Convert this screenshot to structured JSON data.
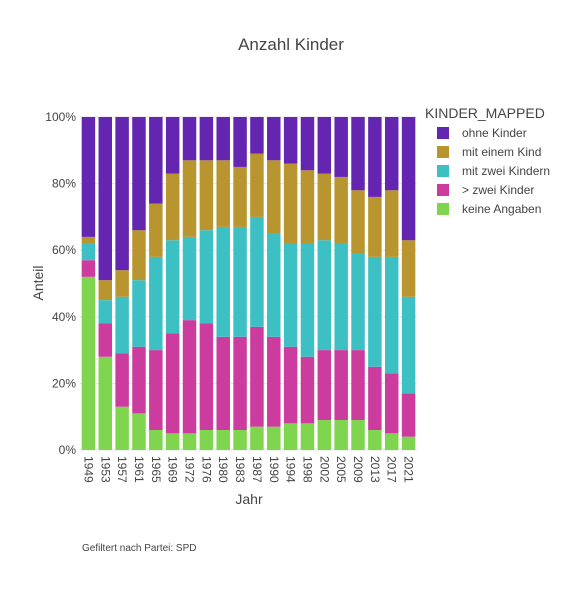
{
  "chart_data": {
    "type": "bar",
    "stacked": true,
    "title": "Anzahl Kinder",
    "xlabel": "Jahr",
    "ylabel": "Anteil",
    "ylim": [
      0,
      1
    ],
    "y_ticks": [
      "0%",
      "20%",
      "40%",
      "60%",
      "80%",
      "100%"
    ],
    "grid": true,
    "legend_title": "KINDER_MAPPED",
    "legend_position": "top-right",
    "categories": [
      "1949",
      "1953",
      "1957",
      "1961",
      "1965",
      "1969",
      "1972",
      "1976",
      "1980",
      "1983",
      "1987",
      "1990",
      "1994",
      "1998",
      "2002",
      "2005",
      "2009",
      "2013",
      "2017",
      "2021"
    ],
    "series": [
      {
        "name": "keine Angaben",
        "color": "#7fd54d",
        "values": [
          0.52,
          0.28,
          0.13,
          0.11,
          0.06,
          0.05,
          0.05,
          0.06,
          0.06,
          0.06,
          0.07,
          0.07,
          0.08,
          0.08,
          0.09,
          0.09,
          0.09,
          0.06,
          0.05,
          0.04
        ]
      },
      {
        "name": "> zwei Kinder",
        "color": "#cc3c9e",
        "values": [
          0.05,
          0.1,
          0.16,
          0.2,
          0.24,
          0.3,
          0.34,
          0.32,
          0.28,
          0.28,
          0.3,
          0.27,
          0.23,
          0.2,
          0.21,
          0.21,
          0.21,
          0.19,
          0.18,
          0.13
        ]
      },
      {
        "name": "mit zwei Kindern",
        "color": "#3cc0c4",
        "values": [
          0.05,
          0.07,
          0.17,
          0.2,
          0.28,
          0.28,
          0.25,
          0.28,
          0.33,
          0.33,
          0.33,
          0.31,
          0.31,
          0.34,
          0.33,
          0.32,
          0.29,
          0.33,
          0.35,
          0.29
        ]
      },
      {
        "name": "mit einem Kind",
        "color": "#b8952e",
        "values": [
          0.02,
          0.06,
          0.08,
          0.15,
          0.16,
          0.2,
          0.23,
          0.21,
          0.2,
          0.18,
          0.19,
          0.22,
          0.24,
          0.22,
          0.2,
          0.2,
          0.19,
          0.18,
          0.2,
          0.17
        ]
      },
      {
        "name": "ohne Kinder",
        "color": "#6426b0",
        "values": [
          0.36,
          0.49,
          0.46,
          0.34,
          0.26,
          0.17,
          0.13,
          0.13,
          0.13,
          0.15,
          0.11,
          0.13,
          0.14,
          0.16,
          0.17,
          0.18,
          0.22,
          0.24,
          0.22,
          0.37
        ]
      }
    ],
    "legend_order": [
      "ohne Kinder",
      "mit einem Kind",
      "mit zwei Kindern",
      "> zwei Kinder",
      "keine Angaben"
    ],
    "annotation": "Gefiltert nach Partei: SPD"
  }
}
